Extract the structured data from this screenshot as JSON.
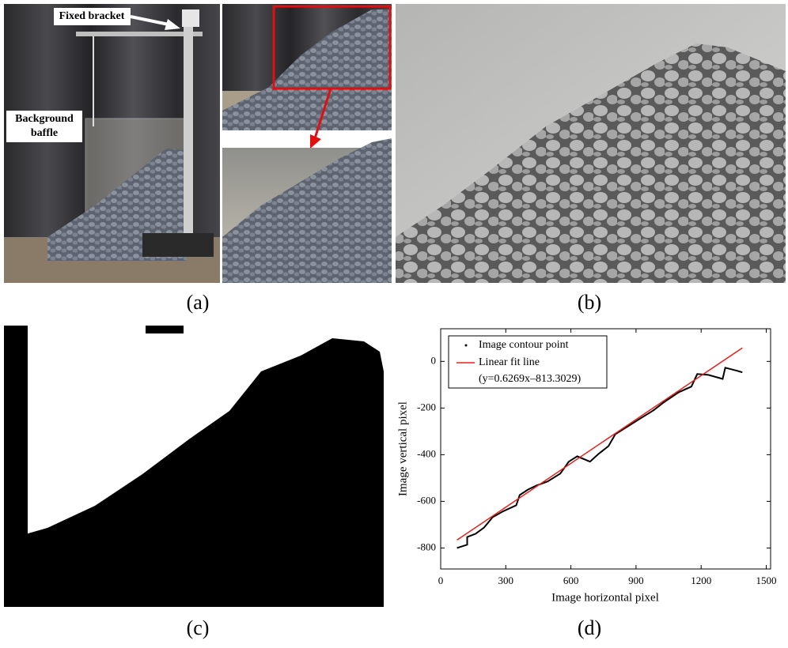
{
  "panels": {
    "a": {
      "label": "(a)",
      "annotations": [
        "Fixed bracket",
        [
          "Background",
          "baffle"
        ]
      ]
    },
    "b": {
      "label": "(b)"
    },
    "c": {
      "label": "(c)"
    },
    "d": {
      "label": "(d)"
    }
  },
  "chart_data": {
    "type": "line",
    "xlabel": "Image horizontal pixel",
    "ylabel": "Image vertical pixel",
    "fit_equation": "(y=0.6269x–813.3029)",
    "xlim": [
      0,
      1520
    ],
    "ylim": [
      -890,
      140
    ],
    "xticks": [
      0,
      300,
      600,
      900,
      1200,
      1500
    ],
    "yticks": [
      -800,
      -600,
      -400,
      -200,
      0
    ],
    "legend": "upper-left",
    "series": [
      {
        "name": "Image contour point",
        "color": "#000000",
        "x": [
          75,
          122,
          122,
          161,
          200,
          239,
          285,
          317,
          348,
          364,
          403,
          442,
          492,
          551,
          590,
          629,
          688,
          727,
          773,
          805,
          863,
          921,
          980,
          1027,
          1097,
          1155,
          1182,
          1233,
          1299,
          1311,
          1369,
          1390
        ],
        "values": [
          -800,
          -786,
          -753,
          -739,
          -712,
          -668,
          -644,
          -630,
          -617,
          -573,
          -549,
          -532,
          -515,
          -481,
          -430,
          -407,
          -430,
          -397,
          -363,
          -312,
          -278,
          -244,
          -210,
          -176,
          -132,
          -108,
          -54,
          -58,
          -75,
          -27,
          -41,
          -47
        ]
      },
      {
        "name": "Linear fit line",
        "color": "#e8201a",
        "x": [
          75,
          1390
        ],
        "values": [
          -766,
          58
        ]
      }
    ]
  }
}
